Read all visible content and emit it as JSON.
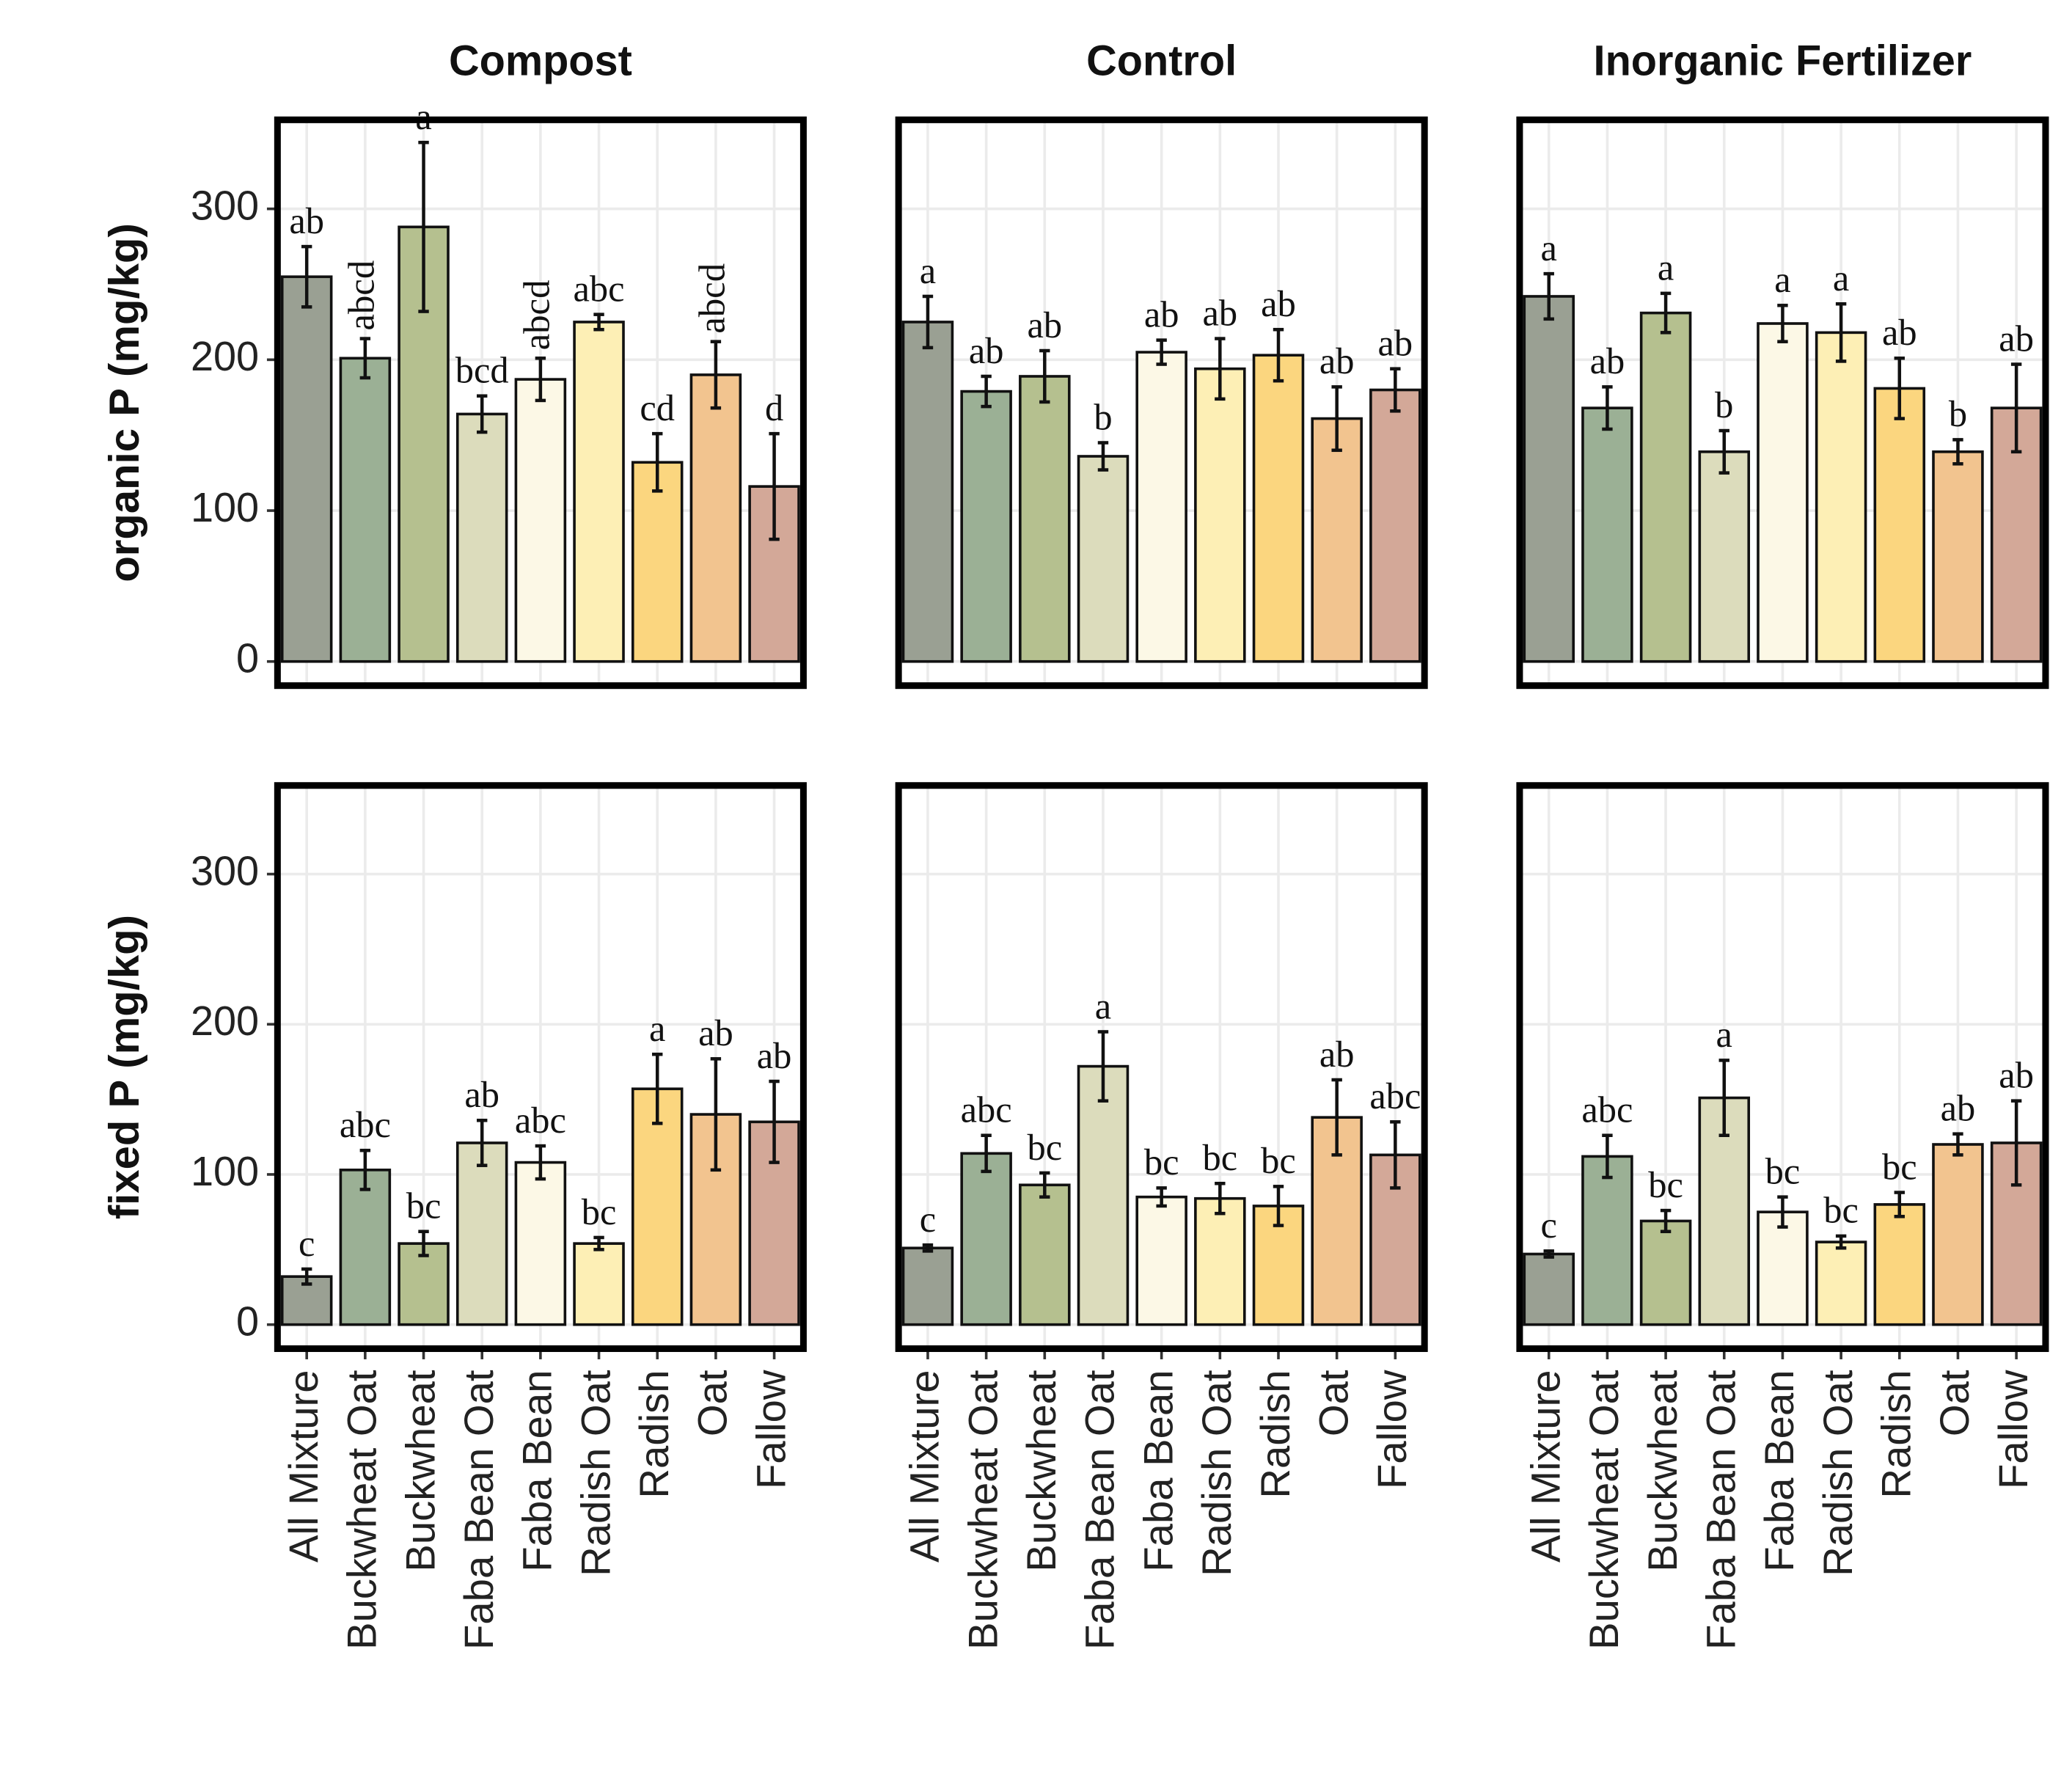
{
  "chart_data": {
    "type": "bar",
    "facets": [
      "Compost",
      "Control",
      "Inorganic Fertilizer"
    ],
    "categories": [
      "All Mixture",
      "Buckwheat Oat",
      "Buckwheat",
      "Faba Bean Oat",
      "Faba Bean",
      "Radish Oat",
      "Radish",
      "Oat",
      "Fallow"
    ],
    "colors": [
      "#9aa093",
      "#9bb095",
      "#b5c08f",
      "#dcdcbc",
      "#fcf8e6",
      "#fdefb5",
      "#fbd67f",
      "#f2c48f",
      "#d3a898"
    ],
    "ylim": [
      -16,
      359
    ],
    "yticks": [
      0,
      100,
      200,
      300
    ],
    "grid": true,
    "rows": [
      {
        "ylabel": "organic P (mg/kg)",
        "panels": [
          {
            "values": [
              255,
              201,
              288,
              164,
              187,
              225,
              132,
              190,
              116
            ],
            "errors": [
              20,
              13,
              56,
              12,
              14,
              5,
              19,
              22,
              35
            ],
            "letters": [
              "ab",
              "abcd",
              "a",
              "bcd",
              "abcd",
              "abc",
              "cd",
              "abcd",
              "d"
            ]
          },
          {
            "values": [
              225,
              179,
              189,
              136,
              205,
              194,
              203,
              161,
              180
            ],
            "errors": [
              17,
              10,
              17,
              9,
              8,
              20,
              17,
              21,
              14
            ],
            "letters": [
              "a",
              "ab",
              "ab",
              "b",
              "ab",
              "ab",
              "ab",
              "ab",
              "ab"
            ]
          },
          {
            "values": [
              242,
              168,
              231,
              139,
              224,
              218,
              181,
              139,
              168
            ],
            "errors": [
              15,
              14,
              13,
              14,
              12,
              19,
              20,
              8,
              29
            ],
            "letters": [
              "a",
              "ab",
              "a",
              "b",
              "a",
              "a",
              "ab",
              "b",
              "ab"
            ]
          }
        ]
      },
      {
        "ylabel": "fixed P (mg/kg)",
        "panels": [
          {
            "values": [
              32,
              103,
              54,
              121,
              108,
              54,
              157,
              140,
              135
            ],
            "errors": [
              5,
              13,
              8,
              15,
              11,
              4,
              23,
              37,
              27
            ],
            "letters": [
              "c",
              "abc",
              "bc",
              "ab",
              "abc",
              "bc",
              "a",
              "ab",
              "ab"
            ]
          },
          {
            "values": [
              51,
              114,
              93,
              172,
              85,
              84,
              79,
              138,
              113
            ],
            "errors": [
              2,
              12,
              8,
              23,
              6,
              10,
              13,
              25,
              22
            ],
            "letters": [
              "c",
              "abc",
              "bc",
              "a",
              "bc",
              "bc",
              "bc",
              "ab",
              "abc"
            ]
          },
          {
            "values": [
              47,
              112,
              69,
              151,
              75,
              55,
              80,
              120,
              121
            ],
            "errors": [
              2,
              14,
              7,
              25,
              10,
              4,
              8,
              7,
              28
            ],
            "letters": [
              "c",
              "abc",
              "bc",
              "a",
              "bc",
              "bc",
              "bc",
              "ab",
              "ab"
            ]
          }
        ]
      }
    ]
  }
}
